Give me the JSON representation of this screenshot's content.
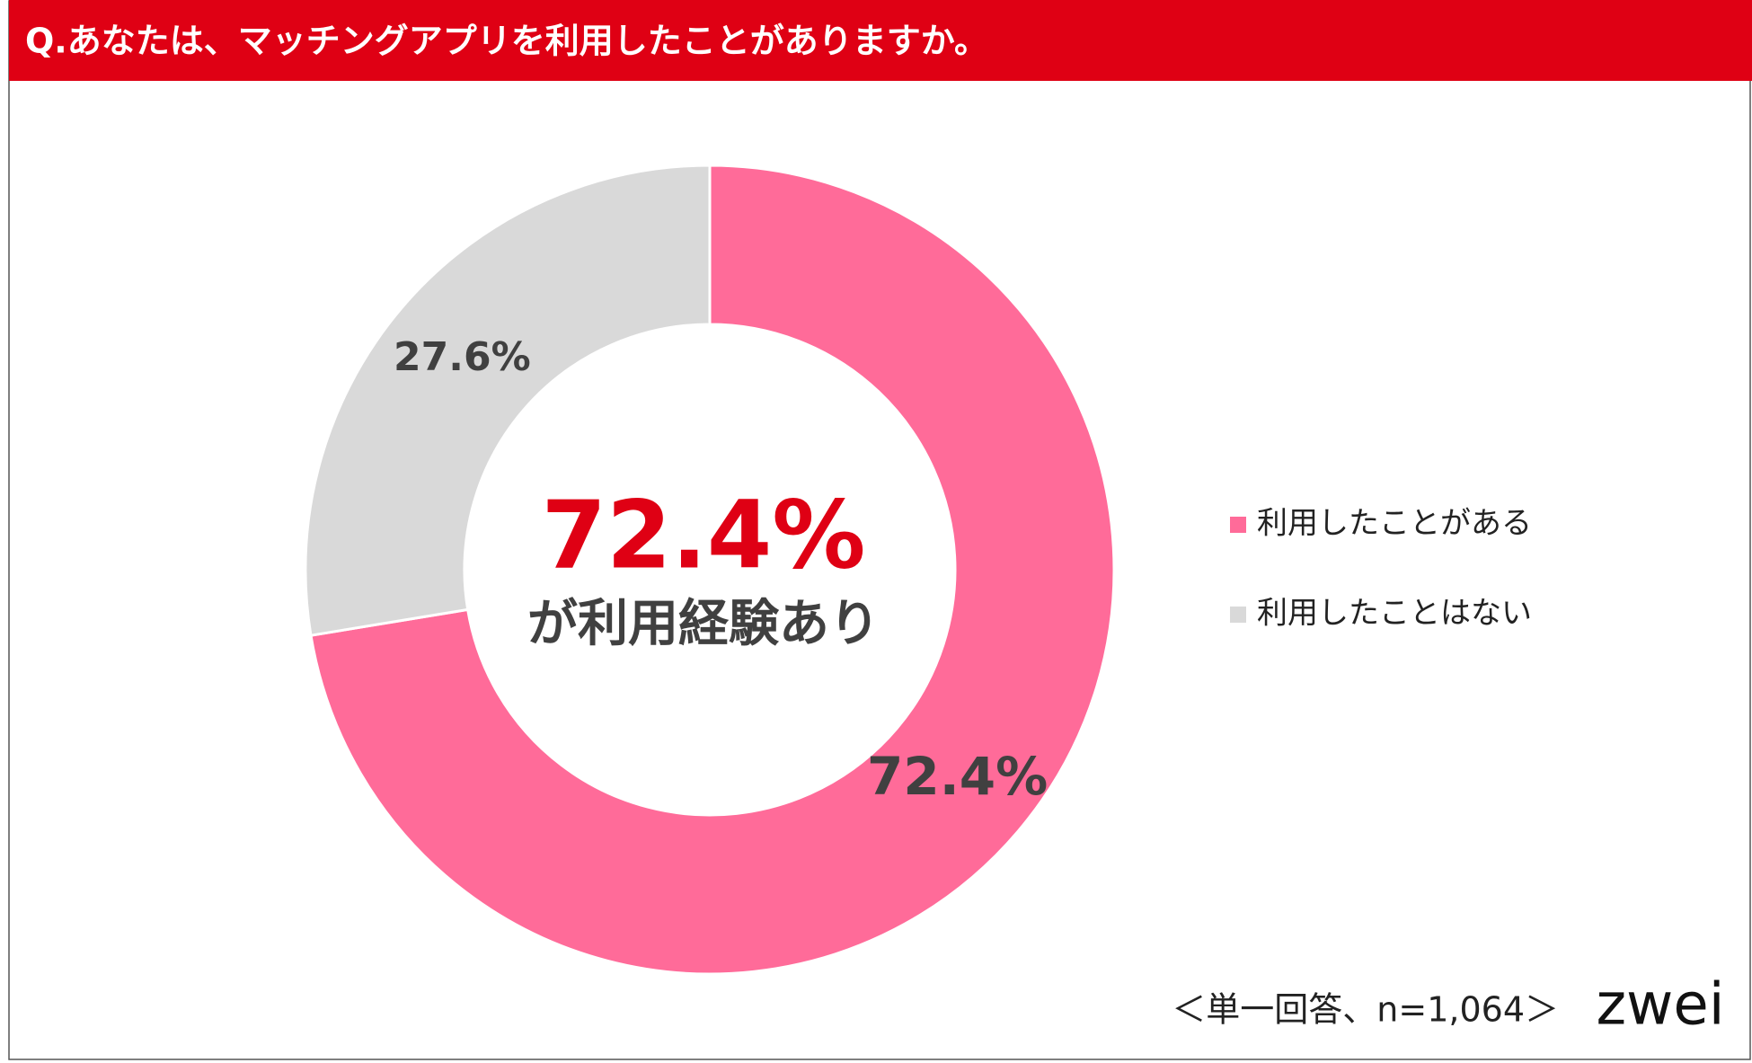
{
  "header": {
    "title": "Q.あなたは、マッチングアプリを利用したことがありますか。"
  },
  "chart_data": {
    "type": "donut",
    "categories": [
      "利用したことがある",
      "利用したことはない"
    ],
    "values": [
      72.4,
      27.6
    ],
    "value_labels": [
      "72.4%",
      "27.6%"
    ],
    "colors": [
      "#ff6b99",
      "#d9d9d9"
    ],
    "center_text": [
      "72.4%",
      "が利用経験あり"
    ],
    "legend": "right"
  },
  "footer": {
    "note": "＜単一回答、n=1,064＞",
    "logo": "zwei"
  }
}
